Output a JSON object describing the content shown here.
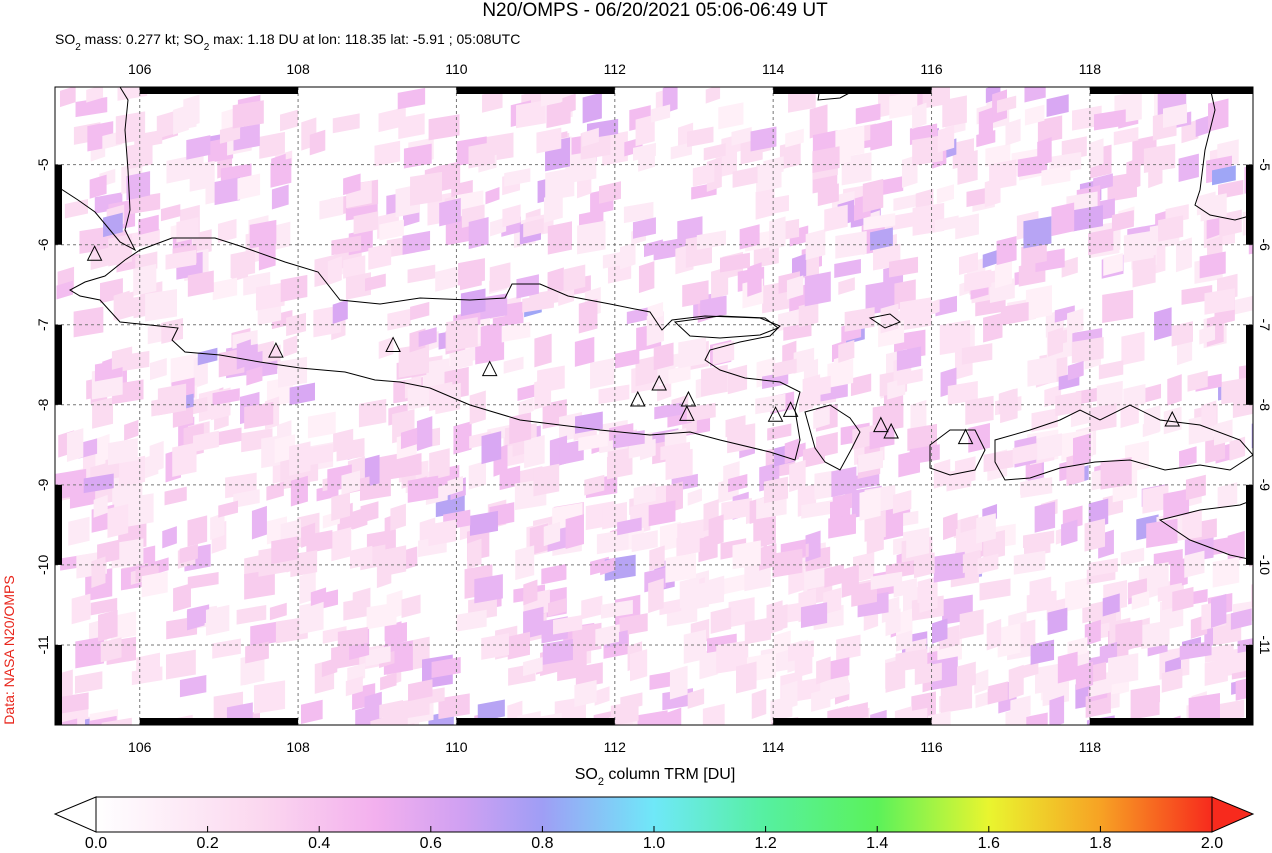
{
  "title": "N20/OMPS - 06/20/2021 05:06-06:49 UT",
  "subtitle": [
    "SO",
    "2",
    " mass: 0.277 kt; SO",
    "2",
    " max: 1.18 DU at lon: 118.35 lat: -5.91 ; 05:08UTC"
  ],
  "credit": "Data: NASA N20/OMPS",
  "map": {
    "xlim": [
      104.93,
      120.06
    ],
    "ylim": [
      -12.0,
      -4.03
    ],
    "xticks": [
      106,
      108,
      110,
      112,
      114,
      116,
      118
    ],
    "yticks": [
      -5,
      -6,
      -7,
      -8,
      -9,
      -10,
      -11
    ],
    "volcanoes": [
      [
        105.43,
        -6.12
      ],
      [
        107.72,
        -7.33
      ],
      [
        109.2,
        -7.26
      ],
      [
        110.42,
        -7.56
      ],
      [
        112.29,
        -7.94
      ],
      [
        112.56,
        -7.74
      ],
      [
        112.93,
        -7.94
      ],
      [
        112.91,
        -8.12
      ],
      [
        114.03,
        -8.13
      ],
      [
        114.22,
        -8.07
      ],
      [
        115.36,
        -8.26
      ],
      [
        115.49,
        -8.34
      ],
      [
        116.43,
        -8.41
      ],
      [
        119.04,
        -8.19
      ]
    ]
  },
  "colorbar": {
    "label": [
      "SO",
      "2",
      " column TRM [DU]"
    ],
    "lim": [
      0,
      2
    ],
    "ticks": [
      {
        "value": 0,
        "label": "0.0"
      },
      {
        "value": 0.2,
        "label": "0.2"
      },
      {
        "value": 0.4,
        "label": "0.4"
      },
      {
        "value": 0.6,
        "label": "0.6"
      },
      {
        "value": 0.8,
        "label": "0.8"
      },
      {
        "value": 1,
        "label": "1.0"
      },
      {
        "value": 1.2,
        "label": "1.2"
      },
      {
        "value": 1.4,
        "label": "1.4"
      },
      {
        "value": 1.6,
        "label": "1.6"
      },
      {
        "value": 1.8,
        "label": "1.8"
      },
      {
        "value": 2,
        "label": "2.0"
      }
    ]
  }
}
